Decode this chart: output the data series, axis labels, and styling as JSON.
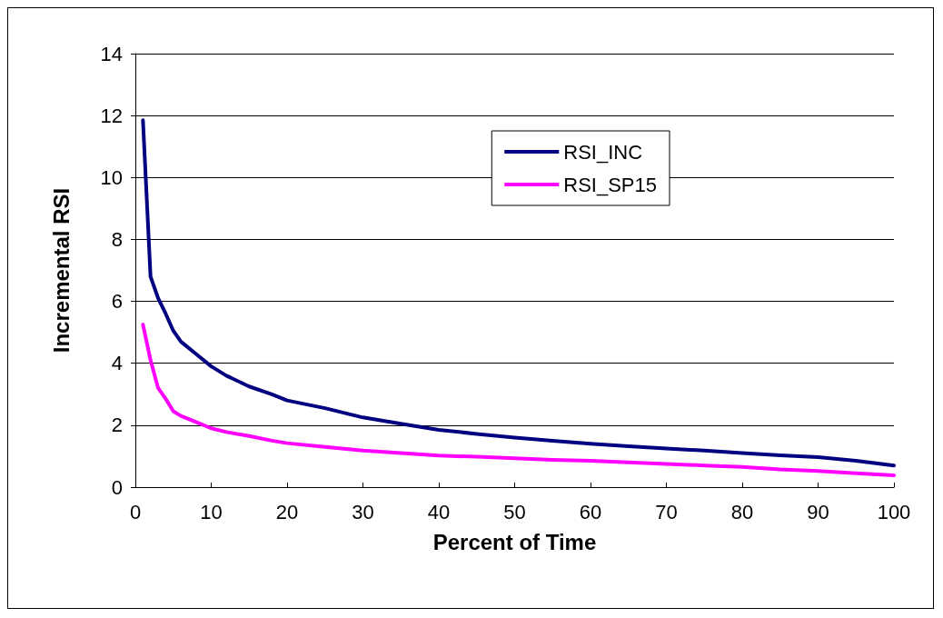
{
  "chart_data": {
    "type": "line",
    "xlabel": "Percent of Time",
    "ylabel": "Incremental RSI",
    "xlim": [
      0,
      100
    ],
    "xticks": [
      0,
      10,
      20,
      30,
      40,
      50,
      60,
      70,
      80,
      90,
      100
    ],
    "ylim": [
      0,
      14
    ],
    "yticks": [
      0,
      2,
      4,
      6,
      8,
      10,
      12,
      14
    ],
    "grid": "y",
    "legend": "top right",
    "marker": "none",
    "line_style": "solid",
    "x": [
      1,
      2,
      3,
      4,
      5,
      6,
      8,
      10,
      12,
      15,
      18,
      20,
      25,
      30,
      35,
      40,
      45,
      50,
      55,
      60,
      65,
      70,
      75,
      80,
      85,
      90,
      95,
      100
    ],
    "series": [
      {
        "name": "RSI_INC",
        "color": "#000080",
        "values": [
          11.85,
          6.8,
          6.1,
          5.6,
          5.05,
          4.7,
          4.3,
          3.9,
          3.6,
          3.25,
          3.0,
          2.8,
          2.55,
          2.25,
          2.05,
          1.85,
          1.72,
          1.6,
          1.5,
          1.4,
          1.32,
          1.25,
          1.18,
          1.1,
          1.03,
          0.97,
          0.85,
          0.7
        ]
      },
      {
        "name": "RSI_SP15",
        "color": "#ff00ff",
        "values": [
          5.25,
          4.1,
          3.2,
          2.85,
          2.45,
          2.3,
          2.1,
          1.9,
          1.78,
          1.65,
          1.5,
          1.42,
          1.3,
          1.18,
          1.1,
          1.02,
          0.98,
          0.93,
          0.88,
          0.85,
          0.8,
          0.75,
          0.7,
          0.65,
          0.57,
          0.52,
          0.45,
          0.38
        ]
      }
    ]
  }
}
